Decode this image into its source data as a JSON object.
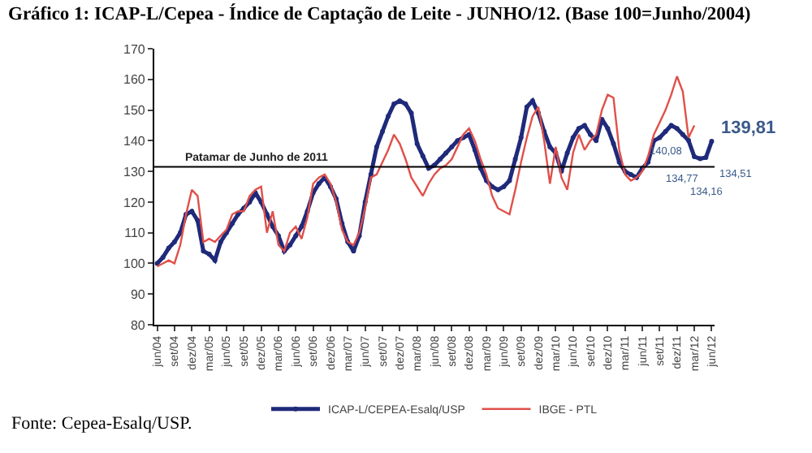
{
  "chart_data": {
    "type": "line",
    "title": "Gráfico 1: ICAP-L/Cepea - Índice de Captação de Leite - JUNHO/12. (Base 100=Junho/2004)",
    "categories": [
      "jun/04",
      null,
      null,
      "set/04",
      null,
      null,
      "dez/04",
      null,
      null,
      "mar/05",
      null,
      null,
      "jun/05",
      null,
      null,
      "set/05",
      null,
      null,
      "dez/05",
      null,
      null,
      "mar/06",
      null,
      null,
      "jun/06",
      null,
      null,
      "set/06",
      null,
      null,
      "dez/06",
      null,
      null,
      "mar/07",
      null,
      null,
      "jun/07",
      null,
      null,
      "set/07",
      null,
      null,
      "dez/07",
      null,
      null,
      "mar/08",
      null,
      null,
      "jun/08",
      null,
      null,
      "set/08",
      null,
      null,
      "dez/08",
      null,
      null,
      "mar/09",
      null,
      null,
      "jun/09",
      null,
      null,
      "set/09",
      null,
      null,
      "dez/09",
      null,
      null,
      "mar/10",
      null,
      null,
      "jun/10",
      null,
      null,
      "set/10",
      null,
      null,
      "dez/10",
      null,
      null,
      "mar/11",
      null,
      null,
      "jun/11",
      null,
      null,
      "set/11",
      null,
      null,
      "dez/11",
      null,
      null,
      "mar/12",
      null,
      null,
      "jun/12"
    ],
    "series": [
      {
        "name": "ICAP-L/CEPEA-Esalq/USP",
        "color": "#1f2a7a",
        "marker": "circle",
        "values": [
          100,
          102,
          105,
          107,
          110,
          116,
          117,
          114,
          104,
          103,
          101,
          107,
          110,
          113,
          116,
          118,
          120,
          123,
          120,
          116,
          112,
          109,
          104,
          106,
          109,
          112,
          117,
          123,
          126,
          128,
          125,
          121,
          113,
          107,
          104,
          109,
          120,
          129,
          138,
          143,
          148,
          152,
          153,
          152,
          149,
          139,
          135,
          131,
          132,
          134,
          136,
          138,
          140,
          141,
          142,
          137,
          131,
          127,
          125,
          124,
          125,
          127,
          134,
          141,
          151,
          153,
          149,
          143,
          138,
          136,
          130,
          136,
          141,
          144,
          145,
          142,
          140,
          147,
          144,
          139,
          133,
          130,
          129,
          128,
          131,
          133,
          140,
          141,
          143,
          145,
          144,
          142,
          140.08,
          134.77,
          134.16,
          134.51,
          139.81
        ],
        "value_labels": [
          null,
          null,
          null,
          null,
          null,
          null,
          null,
          null,
          null,
          null,
          null,
          null,
          null,
          null,
          null,
          null,
          null,
          null,
          null,
          null,
          null,
          null,
          null,
          null,
          null,
          null,
          null,
          null,
          null,
          null,
          null,
          null,
          null,
          null,
          null,
          null,
          null,
          null,
          null,
          null,
          null,
          null,
          null,
          null,
          null,
          null,
          null,
          null,
          null,
          null,
          null,
          null,
          null,
          null,
          null,
          null,
          null,
          null,
          null,
          null,
          null,
          null,
          null,
          null,
          null,
          null,
          null,
          null,
          null,
          null,
          null,
          null,
          null,
          null,
          null,
          null,
          null,
          null,
          null,
          null,
          null,
          null,
          null,
          null,
          null,
          null,
          null,
          null,
          null,
          null,
          null,
          null,
          "140,08",
          "134,77",
          "134,16",
          "134,51",
          "139,81"
        ]
      },
      {
        "name": "IBGE - PTL",
        "color": "#e0504a",
        "marker": "none",
        "values": [
          99,
          100,
          101,
          100,
          106,
          116,
          124,
          122,
          107,
          108,
          107,
          109,
          111,
          116,
          117,
          117,
          122,
          124,
          125,
          110,
          117,
          106,
          104,
          110,
          112,
          108,
          115,
          126,
          128,
          129,
          126,
          120,
          111,
          107,
          106,
          110,
          118,
          128,
          129,
          133,
          137,
          142,
          139,
          134,
          128,
          125,
          122,
          126,
          129,
          131,
          132,
          134,
          138,
          142,
          144,
          140,
          134,
          129,
          122,
          118,
          117,
          116,
          124,
          133,
          141,
          148,
          151,
          140,
          126,
          138,
          128,
          124,
          136,
          142,
          137,
          140,
          142,
          150,
          155,
          154,
          137,
          129,
          127,
          128,
          130,
          135,
          142,
          146,
          150,
          155,
          161,
          156,
          141,
          145,
          null,
          null,
          null
        ]
      }
    ],
    "ylim": [
      80,
      170
    ],
    "yticks": [
      80,
      90,
      100,
      110,
      120,
      130,
      140,
      150,
      160,
      170
    ],
    "ref_lines": [
      {
        "axis": "y",
        "value": 131.5,
        "label": "Patamar de Junho de 2011",
        "color": "#000000"
      }
    ],
    "legend": "bottom",
    "grid": false,
    "annotations": [
      "Fonte: Cepea-Esalq/USP."
    ]
  }
}
